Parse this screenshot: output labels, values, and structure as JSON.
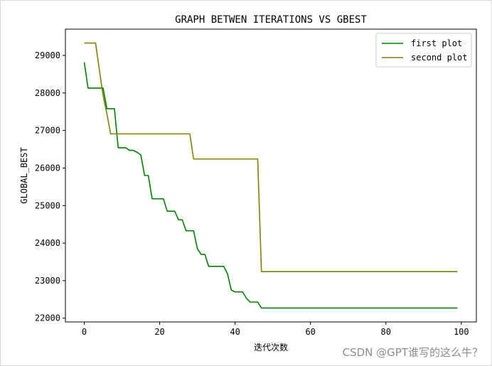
{
  "watermark": "CSDN @GPT谁写的这么牛？",
  "chart_data": {
    "type": "line",
    "title": "GRAPH BETWEN ITERATIONS VS GBEST",
    "xlabel": "迭代次数",
    "ylabel": "GLOBAL_BEST",
    "xlim": [
      -5,
      104
    ],
    "ylim": [
      21900,
      29700
    ],
    "xticks": [
      0,
      20,
      40,
      60,
      80,
      100
    ],
    "yticks": [
      22000,
      23000,
      24000,
      25000,
      26000,
      27000,
      28000,
      29000
    ],
    "grid": false,
    "legend_position": "top-right",
    "series": [
      {
        "name": "first plot",
        "color": "#008000",
        "points": [
          [
            0,
            28820
          ],
          [
            1,
            28130
          ],
          [
            4,
            28130
          ],
          [
            5,
            28130
          ],
          [
            6,
            27580
          ],
          [
            8,
            27580
          ],
          [
            9,
            26540
          ],
          [
            11,
            26540
          ],
          [
            12,
            26470
          ],
          [
            13,
            26470
          ],
          [
            14,
            26420
          ],
          [
            15,
            26350
          ],
          [
            16,
            25800
          ],
          [
            17,
            25800
          ],
          [
            18,
            25180
          ],
          [
            21,
            25180
          ],
          [
            22,
            24850
          ],
          [
            24,
            24850
          ],
          [
            25,
            24620
          ],
          [
            26,
            24620
          ],
          [
            27,
            24330
          ],
          [
            29,
            24330
          ],
          [
            30,
            23850
          ],
          [
            31,
            23700
          ],
          [
            32,
            23700
          ],
          [
            33,
            23380
          ],
          [
            37,
            23380
          ],
          [
            38,
            23180
          ],
          [
            39,
            22750
          ],
          [
            40,
            22700
          ],
          [
            42,
            22700
          ],
          [
            43,
            22530
          ],
          [
            44,
            22430
          ],
          [
            46,
            22430
          ],
          [
            47,
            22270
          ],
          [
            99,
            22270
          ]
        ]
      },
      {
        "name": "second plot",
        "color": "#808000",
        "points": [
          [
            0,
            29330
          ],
          [
            3,
            29330
          ],
          [
            4,
            28620
          ],
          [
            5,
            27930
          ],
          [
            6,
            27450
          ],
          [
            7,
            26910
          ],
          [
            28,
            26910
          ],
          [
            29,
            26240
          ],
          [
            46,
            26240
          ],
          [
            47,
            23240
          ],
          [
            99,
            23240
          ]
        ]
      }
    ]
  }
}
